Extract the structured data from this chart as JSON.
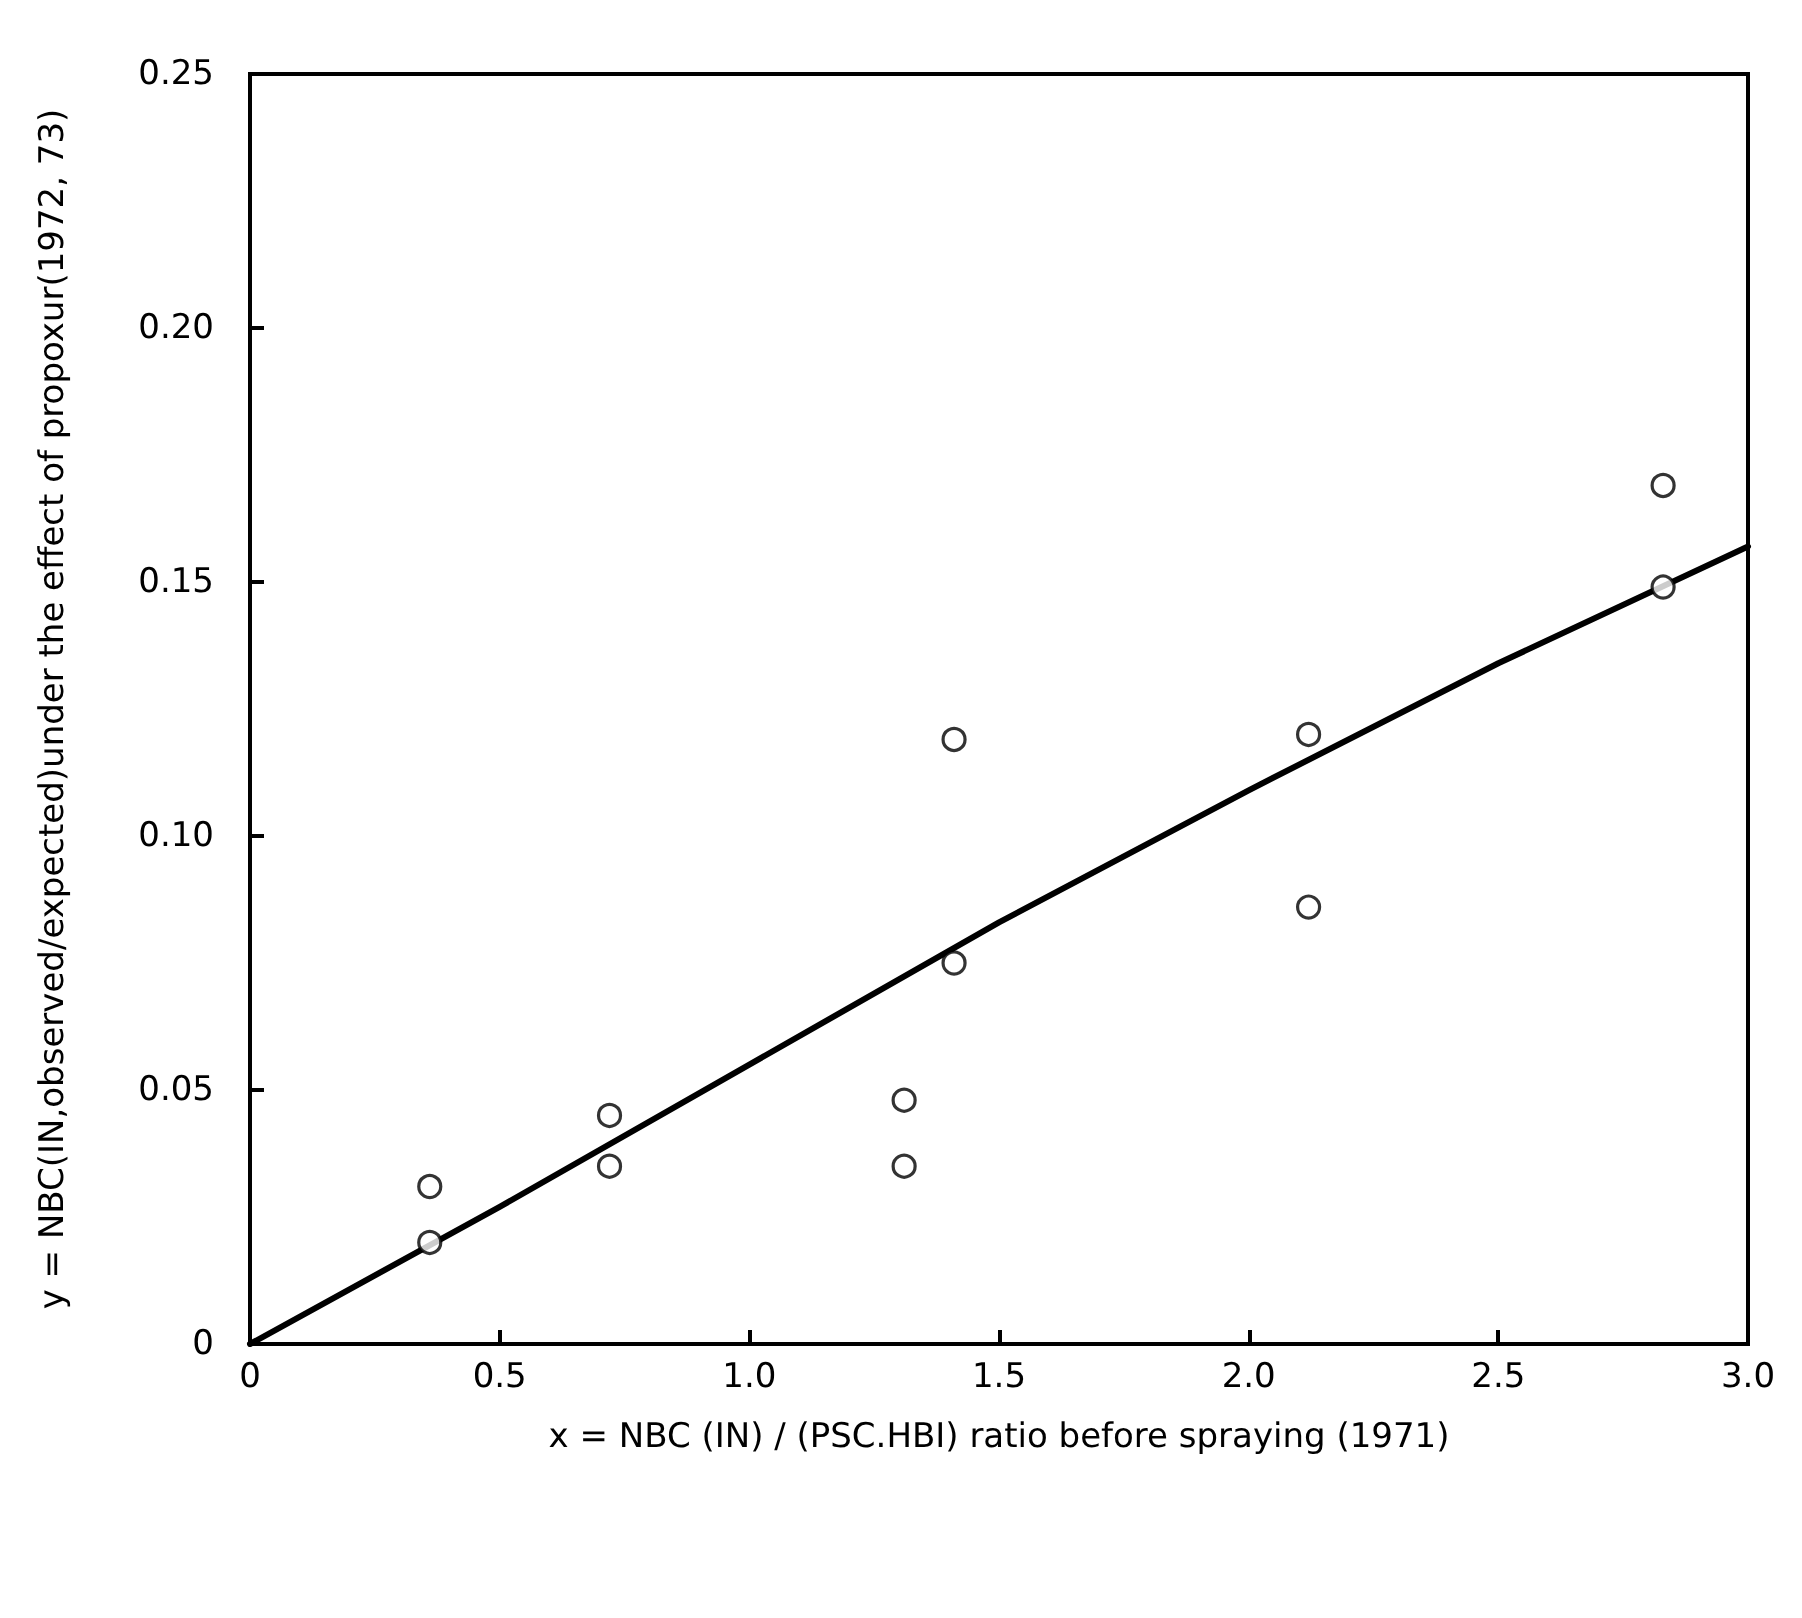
{
  "chart_data": {
    "type": "scatter",
    "xlabel": "x = NBC (IN) / (PSC.HBI) ratio before spraying (1971)",
    "ylabel": "y = NBC(IN,observed/expected)under the effect of propoxur(1972, 73)",
    "series": [
      {
        "color": "#000000",
        "marker": "circle",
        "x": [
          0.36,
          0.36,
          0.72,
          0.72,
          1.31,
          1.31,
          1.41,
          1.41,
          2.12,
          2.12,
          2.83,
          2.83
        ],
        "values": [
          0.031,
          0.02,
          0.045,
          0.035,
          0.048,
          0.035,
          0.119,
          0.075,
          0.12,
          0.086,
          0.169,
          0.149
        ]
      },
      {
        "type": "line",
        "color": "#000000",
        "marker": "none",
        "line_style": "solid",
        "x": [
          0,
          0.5,
          1.0,
          1.5,
          2.0,
          2.5,
          3.0
        ],
        "values": [
          0,
          0.027,
          0.055,
          0.083,
          0.109,
          0.134,
          0.157
        ]
      }
    ],
    "xlim": [
      0,
      3.0
    ],
    "xticks": [
      {
        "value": 0,
        "label": "0"
      },
      {
        "value": 0.5,
        "label": "0.5"
      },
      {
        "value": 1.0,
        "label": "1.0"
      },
      {
        "value": 1.5,
        "label": "1.5"
      },
      {
        "value": 2.0,
        "label": "2.0"
      },
      {
        "value": 2.5,
        "label": "2.5"
      },
      {
        "value": 3.0,
        "label": "3.0"
      }
    ],
    "ylim": [
      0,
      0.25
    ],
    "yticks": [
      {
        "value": 0,
        "label": "0"
      },
      {
        "value": 0.05,
        "label": "0.05"
      },
      {
        "value": 0.1,
        "label": "0.10"
      },
      {
        "value": 0.15,
        "label": "0.15"
      },
      {
        "value": 0.2,
        "label": "0.20"
      },
      {
        "value": 0.25,
        "label": "0.25"
      }
    ],
    "grid": false
  }
}
